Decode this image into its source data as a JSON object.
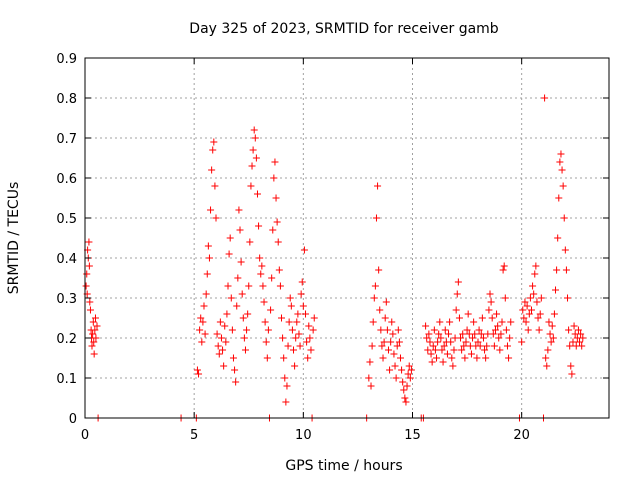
{
  "chart_data": {
    "type": "scatter",
    "title": "Day 325 of 2023, SRMTID for receiver gamb",
    "xlabel": "GPS time / hours",
    "ylabel": "SRMTID / TECUs",
    "xlim": [
      0,
      24
    ],
    "ylim": [
      0,
      0.9
    ],
    "xticks": [
      0,
      5,
      10,
      15,
      20
    ],
    "xtick_labels": [
      "0",
      "5",
      "10",
      "15",
      "20"
    ],
    "yticks": [
      0,
      0.1,
      0.2,
      0.3,
      0.4,
      0.5,
      0.6,
      0.7,
      0.8,
      0.9
    ],
    "ytick_labels": [
      "0",
      "0.1",
      "0.2",
      "0.3",
      "0.4",
      "0.5",
      "0.6",
      "0.7",
      "0.8",
      "0.9"
    ],
    "grid": true,
    "marker": "+",
    "color": "#ff0000",
    "series": [
      {
        "name": "SRMTID",
        "points": [
          [
            0.05,
            0.33
          ],
          [
            0.08,
            0.36
          ],
          [
            0.1,
            0.31
          ],
          [
            0.12,
            0.42
          ],
          [
            0.15,
            0.4
          ],
          [
            0.18,
            0.44
          ],
          [
            0.2,
            0.38
          ],
          [
            0.22,
            0.29
          ],
          [
            0.25,
            0.27
          ],
          [
            0.28,
            0.22
          ],
          [
            0.3,
            0.2
          ],
          [
            0.32,
            0.18
          ],
          [
            0.35,
            0.21
          ],
          [
            0.38,
            0.24
          ],
          [
            0.4,
            0.19
          ],
          [
            0.42,
            0.16
          ],
          [
            0.45,
            0.22
          ],
          [
            0.48,
            0.25
          ],
          [
            0.5,
            0.2
          ],
          [
            0.55,
            0.23
          ],
          [
            0.6,
            0.0
          ],
          [
            4.4,
            0.0
          ],
          [
            5.1,
            0.0
          ],
          [
            5.15,
            0.12
          ],
          [
            5.2,
            0.11
          ],
          [
            5.25,
            0.22
          ],
          [
            5.3,
            0.25
          ],
          [
            5.35,
            0.19
          ],
          [
            5.4,
            0.24
          ],
          [
            5.45,
            0.28
          ],
          [
            5.5,
            0.21
          ],
          [
            5.55,
            0.31
          ],
          [
            5.6,
            0.36
          ],
          [
            5.65,
            0.43
          ],
          [
            5.7,
            0.4
          ],
          [
            5.75,
            0.52
          ],
          [
            5.8,
            0.62
          ],
          [
            5.85,
            0.67
          ],
          [
            5.9,
            0.69
          ],
          [
            5.95,
            0.58
          ],
          [
            6.0,
            0.5
          ],
          [
            6.05,
            0.21
          ],
          [
            6.1,
            0.18
          ],
          [
            6.15,
            0.16
          ],
          [
            6.2,
            0.24
          ],
          [
            6.25,
            0.2
          ],
          [
            6.3,
            0.17
          ],
          [
            6.35,
            0.13
          ],
          [
            6.4,
            0.23
          ],
          [
            6.45,
            0.19
          ],
          [
            6.5,
            0.26
          ],
          [
            6.55,
            0.33
          ],
          [
            6.6,
            0.41
          ],
          [
            6.65,
            0.45
          ],
          [
            6.7,
            0.3
          ],
          [
            6.75,
            0.22
          ],
          [
            6.8,
            0.15
          ],
          [
            6.85,
            0.12
          ],
          [
            6.9,
            0.09
          ],
          [
            6.95,
            0.28
          ],
          [
            7.0,
            0.35
          ],
          [
            7.05,
            0.52
          ],
          [
            7.1,
            0.47
          ],
          [
            7.15,
            0.39
          ],
          [
            7.2,
            0.31
          ],
          [
            7.25,
            0.25
          ],
          [
            7.3,
            0.2
          ],
          [
            7.35,
            0.17
          ],
          [
            7.4,
            0.22
          ],
          [
            7.45,
            0.26
          ],
          [
            7.5,
            0.33
          ],
          [
            7.55,
            0.44
          ],
          [
            7.6,
            0.58
          ],
          [
            7.65,
            0.63
          ],
          [
            7.7,
            0.67
          ],
          [
            7.75,
            0.72
          ],
          [
            7.8,
            0.7
          ],
          [
            7.85,
            0.65
          ],
          [
            7.9,
            0.56
          ],
          [
            7.95,
            0.48
          ],
          [
            8.0,
            0.4
          ],
          [
            8.05,
            0.36
          ],
          [
            8.1,
            0.38
          ],
          [
            8.15,
            0.33
          ],
          [
            8.2,
            0.29
          ],
          [
            8.25,
            0.24
          ],
          [
            8.3,
            0.19
          ],
          [
            8.35,
            0.15
          ],
          [
            8.4,
            0.22
          ],
          [
            8.45,
            0.0
          ],
          [
            8.5,
            0.27
          ],
          [
            8.55,
            0.35
          ],
          [
            8.6,
            0.47
          ],
          [
            8.65,
            0.6
          ],
          [
            8.7,
            0.64
          ],
          [
            8.75,
            0.55
          ],
          [
            8.8,
            0.49
          ],
          [
            8.85,
            0.44
          ],
          [
            8.9,
            0.37
          ],
          [
            8.95,
            0.33
          ],
          [
            9.0,
            0.25
          ],
          [
            9.05,
            0.2
          ],
          [
            9.1,
            0.15
          ],
          [
            9.15,
            0.1
          ],
          [
            9.2,
            0.04
          ],
          [
            9.25,
            0.08
          ],
          [
            9.3,
            0.18
          ],
          [
            9.35,
            0.24
          ],
          [
            9.4,
            0.3
          ],
          [
            9.45,
            0.28
          ],
          [
            9.5,
            0.22
          ],
          [
            9.55,
            0.17
          ],
          [
            9.6,
            0.13
          ],
          [
            9.65,
            0.2
          ],
          [
            9.7,
            0.24
          ],
          [
            9.75,
            0.26
          ],
          [
            9.8,
            0.21
          ],
          [
            9.85,
            0.18
          ],
          [
            9.9,
            0.31
          ],
          [
            9.95,
            0.34
          ],
          [
            10.0,
            0.28
          ],
          [
            10.05,
            0.42
          ],
          [
            10.1,
            0.26
          ],
          [
            10.15,
            0.19
          ],
          [
            10.2,
            0.15
          ],
          [
            10.25,
            0.23
          ],
          [
            10.3,
            0.2
          ],
          [
            10.35,
            0.17
          ],
          [
            10.4,
            0.0
          ],
          [
            10.45,
            0.22
          ],
          [
            10.5,
            0.25
          ],
          [
            12.9,
            0.0
          ],
          [
            13.0,
            0.1
          ],
          [
            13.05,
            0.14
          ],
          [
            13.1,
            0.08
          ],
          [
            13.15,
            0.18
          ],
          [
            13.2,
            0.24
          ],
          [
            13.25,
            0.3
          ],
          [
            13.3,
            0.33
          ],
          [
            13.35,
            0.5
          ],
          [
            13.4,
            0.58
          ],
          [
            13.45,
            0.37
          ],
          [
            13.5,
            0.27
          ],
          [
            13.55,
            0.22
          ],
          [
            13.6,
            0.18
          ],
          [
            13.65,
            0.15
          ],
          [
            13.7,
            0.19
          ],
          [
            13.75,
            0.25
          ],
          [
            13.8,
            0.29
          ],
          [
            13.85,
            0.22
          ],
          [
            13.9,
            0.17
          ],
          [
            13.95,
            0.12
          ],
          [
            14.0,
            0.19
          ],
          [
            14.05,
            0.24
          ],
          [
            14.1,
            0.21
          ],
          [
            14.15,
            0.16
          ],
          [
            14.2,
            0.13
          ],
          [
            14.25,
            0.1
          ],
          [
            14.3,
            0.18
          ],
          [
            14.35,
            0.22
          ],
          [
            14.4,
            0.19
          ],
          [
            14.45,
            0.15
          ],
          [
            14.5,
            0.12
          ],
          [
            14.55,
            0.09
          ],
          [
            14.6,
            0.07
          ],
          [
            14.65,
            0.05
          ],
          [
            14.7,
            0.04
          ],
          [
            14.75,
            0.08
          ],
          [
            14.8,
            0.11
          ],
          [
            14.85,
            0.13
          ],
          [
            14.9,
            0.1
          ],
          [
            14.95,
            0.12
          ],
          [
            15.4,
            0.0
          ],
          [
            15.5,
            0.0
          ],
          [
            15.6,
            0.23
          ],
          [
            15.65,
            0.2
          ],
          [
            15.7,
            0.17
          ],
          [
            15.75,
            0.21
          ],
          [
            15.8,
            0.19
          ],
          [
            15.85,
            0.16
          ],
          [
            15.9,
            0.14
          ],
          [
            15.95,
            0.18
          ],
          [
            16.0,
            0.22
          ],
          [
            16.05,
            0.17
          ],
          [
            16.1,
            0.15
          ],
          [
            16.15,
            0.19
          ],
          [
            16.2,
            0.21
          ],
          [
            16.25,
            0.24
          ],
          [
            16.3,
            0.2
          ],
          [
            16.35,
            0.17
          ],
          [
            16.4,
            0.14
          ],
          [
            16.45,
            0.18
          ],
          [
            16.5,
            0.22
          ],
          [
            16.55,
            0.19
          ],
          [
            16.6,
            0.16
          ],
          [
            16.65,
            0.21
          ],
          [
            16.7,
            0.24
          ],
          [
            16.75,
            0.19
          ],
          [
            16.8,
            0.15
          ],
          [
            16.85,
            0.13
          ],
          [
            16.9,
            0.17
          ],
          [
            16.95,
            0.2
          ],
          [
            17.0,
            0.27
          ],
          [
            17.05,
            0.31
          ],
          [
            17.1,
            0.34
          ],
          [
            17.15,
            0.25
          ],
          [
            17.2,
            0.2
          ],
          [
            17.25,
            0.17
          ],
          [
            17.3,
            0.21
          ],
          [
            17.35,
            0.18
          ],
          [
            17.4,
            0.15
          ],
          [
            17.45,
            0.19
          ],
          [
            17.5,
            0.22
          ],
          [
            17.55,
            0.26
          ],
          [
            17.6,
            0.21
          ],
          [
            17.65,
            0.18
          ],
          [
            17.7,
            0.16
          ],
          [
            17.75,
            0.2
          ],
          [
            17.8,
            0.24
          ],
          [
            17.85,
            0.21
          ],
          [
            17.9,
            0.18
          ],
          [
            17.95,
            0.15
          ],
          [
            18.0,
            0.19
          ],
          [
            18.05,
            0.22
          ],
          [
            18.1,
            0.18
          ],
          [
            18.15,
            0.21
          ],
          [
            18.2,
            0.25
          ],
          [
            18.25,
            0.2
          ],
          [
            18.3,
            0.17
          ],
          [
            18.35,
            0.15
          ],
          [
            18.4,
            0.18
          ],
          [
            18.45,
            0.21
          ],
          [
            18.5,
            0.27
          ],
          [
            18.55,
            0.31
          ],
          [
            18.6,
            0.29
          ],
          [
            18.65,
            0.25
          ],
          [
            18.7,
            0.21
          ],
          [
            18.75,
            0.18
          ],
          [
            18.8,
            0.22
          ],
          [
            18.85,
            0.26
          ],
          [
            18.9,
            0.23
          ],
          [
            18.95,
            0.2
          ],
          [
            19.0,
            0.17
          ],
          [
            19.05,
            0.21
          ],
          [
            19.1,
            0.24
          ],
          [
            19.15,
            0.37
          ],
          [
            19.2,
            0.38
          ],
          [
            19.25,
            0.3
          ],
          [
            19.3,
            0.22
          ],
          [
            19.35,
            0.18
          ],
          [
            19.4,
            0.15
          ],
          [
            19.45,
            0.2
          ],
          [
            19.5,
            0.24
          ],
          [
            19.9,
            0.0
          ],
          [
            20.0,
            0.19
          ],
          [
            20.05,
            0.27
          ],
          [
            20.1,
            0.25
          ],
          [
            20.15,
            0.29
          ],
          [
            20.2,
            0.24
          ],
          [
            20.25,
            0.28
          ],
          [
            20.3,
            0.22
          ],
          [
            20.35,
            0.26
          ],
          [
            20.4,
            0.3
          ],
          [
            20.45,
            0.27
          ],
          [
            20.5,
            0.33
          ],
          [
            20.55,
            0.31
          ],
          [
            20.6,
            0.36
          ],
          [
            20.65,
            0.38
          ],
          [
            20.7,
            0.29
          ],
          [
            20.75,
            0.25
          ],
          [
            20.8,
            0.22
          ],
          [
            20.85,
            0.26
          ],
          [
            20.9,
            0.3
          ],
          [
            21.0,
            0.0
          ],
          [
            21.05,
            0.8
          ],
          [
            21.1,
            0.15
          ],
          [
            21.15,
            0.13
          ],
          [
            21.2,
            0.17
          ],
          [
            21.25,
            0.24
          ],
          [
            21.3,
            0.21
          ],
          [
            21.35,
            0.19
          ],
          [
            21.4,
            0.23
          ],
          [
            21.45,
            0.2
          ],
          [
            21.5,
            0.26
          ],
          [
            21.55,
            0.32
          ],
          [
            21.6,
            0.37
          ],
          [
            21.65,
            0.45
          ],
          [
            21.7,
            0.55
          ],
          [
            21.75,
            0.64
          ],
          [
            21.8,
            0.66
          ],
          [
            21.85,
            0.62
          ],
          [
            21.9,
            0.58
          ],
          [
            21.95,
            0.5
          ],
          [
            22.0,
            0.42
          ],
          [
            22.05,
            0.37
          ],
          [
            22.1,
            0.3
          ],
          [
            22.15,
            0.22
          ],
          [
            22.2,
            0.18
          ],
          [
            22.25,
            0.13
          ],
          [
            22.3,
            0.11
          ],
          [
            22.35,
            0.19
          ],
          [
            22.4,
            0.23
          ],
          [
            22.45,
            0.21
          ],
          [
            22.5,
            0.18
          ],
          [
            22.55,
            0.2
          ],
          [
            22.6,
            0.22
          ],
          [
            22.65,
            0.19
          ],
          [
            22.7,
            0.21
          ],
          [
            22.75,
            0.18
          ],
          [
            22.8,
            0.2
          ]
        ]
      }
    ]
  }
}
